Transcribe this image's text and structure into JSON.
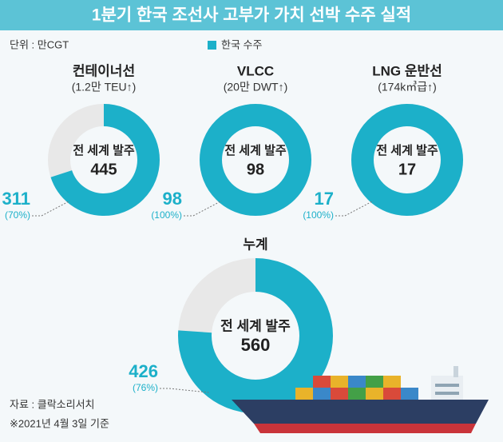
{
  "title": "1분기 한국 조선사 고부가 가치 선박 수주 실적",
  "unit": "단위 : 만CGT",
  "legend": {
    "name": "한국 수주",
    "color": "#1cb0c9"
  },
  "source": "자료 : 클락소리서치",
  "note": "※2021년 4월 3일 기준",
  "chart_data": [
    {
      "type": "donut",
      "title": "컨테이너선",
      "subtitle": "(1.2만 TEU↑)",
      "center_label": "전 세계 발주",
      "total": 445,
      "value": 311,
      "percent": {
        "value": 70,
        "label": "(70%)"
      },
      "color": "#1cb0c9",
      "rest_color": "#e8e8e8"
    },
    {
      "type": "donut",
      "title": "VLCC",
      "subtitle": "(20만 DWT↑)",
      "center_label": "전 세계 발주",
      "total": 98,
      "value": 98,
      "percent": {
        "value": 100,
        "label": "(100%)"
      },
      "color": "#1cb0c9",
      "rest_color": "#e8e8e8"
    },
    {
      "type": "donut",
      "title": "LNG 운반선",
      "subtitle": "(174k㎥급↑)",
      "center_label": "전 세계 발주",
      "total": 17,
      "value": 17,
      "percent": {
        "value": 100,
        "label": "(100%)"
      },
      "color": "#1cb0c9",
      "rest_color": "#e8e8e8"
    },
    {
      "type": "donut",
      "title": "누계",
      "center_label": "전 세계 발주",
      "total": 560,
      "value": 426,
      "percent": {
        "value": 76,
        "label": "(76%)"
      },
      "color": "#1cb0c9",
      "rest_color": "#e8e8e8"
    }
  ]
}
